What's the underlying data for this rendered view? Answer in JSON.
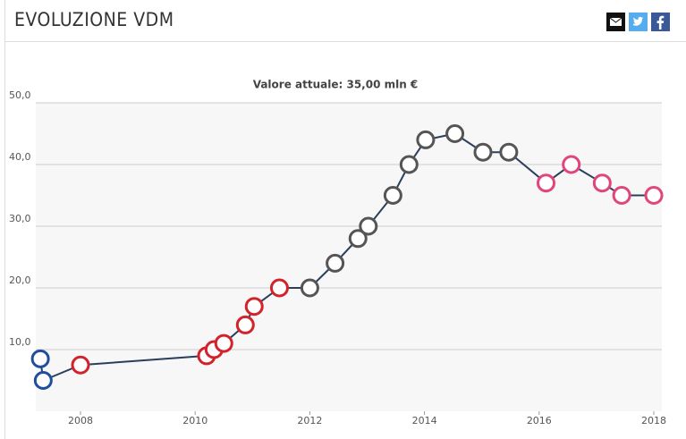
{
  "header": {
    "title": "EVOLUZIONE VDM"
  },
  "chart_data": {
    "type": "line",
    "title": "Valore attuale: 35,00 mln €",
    "x": [
      2007.3,
      2007.35,
      2008.0,
      2010.2,
      2010.33,
      2010.5,
      2010.875,
      2011.03,
      2011.47,
      2012.0,
      2012.44,
      2012.84,
      2013.02,
      2013.45,
      2013.73,
      2014.02,
      2014.53,
      2015.02,
      2015.47,
      2016.12,
      2016.56,
      2017.1,
      2017.44,
      2018.0
    ],
    "values": [
      8.5,
      5.0,
      7.5,
      9.0,
      10.0,
      11.0,
      14.0,
      17.0,
      20.0,
      20.0,
      24.0,
      28.0,
      30.0,
      35.0,
      40.0,
      44.0,
      45.0,
      42.0,
      42.0,
      37.0,
      40.0,
      37.0,
      35.0,
      35.0
    ],
    "marker_colors": [
      "#1f4e9c",
      "#1f4e9c",
      "#d2232a",
      "#d2232a",
      "#d2232a",
      "#d2232a",
      "#d2232a",
      "#d2232a",
      "#d2232a",
      "#555555",
      "#555555",
      "#555555",
      "#555555",
      "#555555",
      "#555555",
      "#555555",
      "#555555",
      "#555555",
      "#555555",
      "#e0457b",
      "#e0457b",
      "#e0457b",
      "#e0457b",
      "#e0457b"
    ],
    "color": "#2b3f5c",
    "xlim": [
      2007.22,
      2018.14
    ],
    "xticks": [
      2008,
      2010,
      2012,
      2014,
      2016,
      2018
    ],
    "ylim": [
      0,
      50
    ],
    "yticks": [
      {
        "value": 10,
        "label": "10,0"
      },
      {
        "value": 20,
        "label": "20,0"
      },
      {
        "value": 30,
        "label": "30,0"
      },
      {
        "value": 40,
        "label": "40,0"
      },
      {
        "value": 50,
        "label": "50,0"
      }
    ],
    "grid": true
  }
}
